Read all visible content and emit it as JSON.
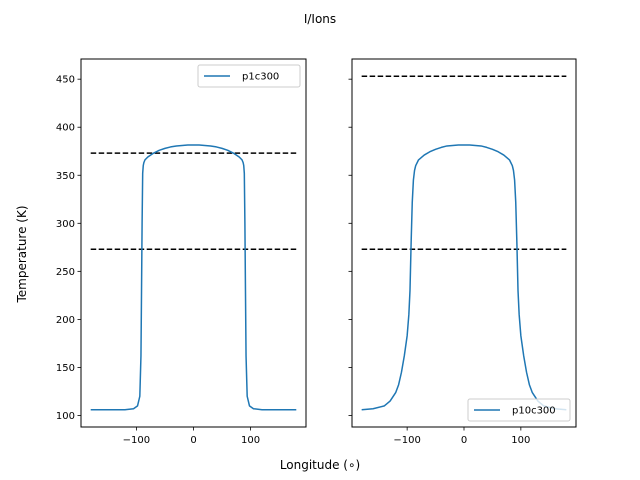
{
  "figure": {
    "suptitle": "I/Ions",
    "xlabel": "Longitude (∘)",
    "ylabel": "Temperature (K)"
  },
  "chart_data": [
    {
      "type": "line",
      "xlim": [
        -197,
        197
      ],
      "ylim": [
        88,
        471
      ],
      "xticks": [
        -100,
        0,
        100
      ],
      "yticks": [
        100,
        150,
        200,
        250,
        300,
        350,
        400,
        450
      ],
      "legend_position": "upper right",
      "series": [
        {
          "name": "p1c300",
          "color": "#1f77b4",
          "x": [
            -180,
            -120,
            -105,
            -98,
            -94,
            -92,
            -91,
            -90,
            -89,
            -88,
            -87,
            -85,
            -80,
            -70,
            -60,
            -50,
            -40,
            -30,
            -20,
            -10,
            0,
            10,
            20,
            30,
            40,
            50,
            60,
            70,
            80,
            85,
            87,
            88,
            89,
            90,
            91,
            92,
            94,
            98,
            105,
            120,
            180
          ],
          "y": [
            106,
            106,
            107,
            110,
            120,
            162,
            230,
            300,
            352,
            360,
            363,
            366,
            369,
            373,
            376,
            378,
            379.5,
            380.5,
            381,
            381.5,
            381.5,
            381.5,
            381,
            380.5,
            379.5,
            378,
            376,
            373,
            369,
            366,
            363,
            360,
            352,
            300,
            230,
            162,
            120,
            110,
            107,
            106,
            106
          ]
        }
      ],
      "reference_lines": [
        {
          "y": 373,
          "style": "dashed",
          "color": "#000000"
        },
        {
          "y": 273,
          "style": "dashed",
          "color": "#000000"
        }
      ]
    },
    {
      "type": "line",
      "xlim": [
        -197,
        197
      ],
      "ylim": [
        88,
        471
      ],
      "xticks": [
        -100,
        0,
        100
      ],
      "yticks": [
        100,
        150,
        200,
        250,
        300,
        350,
        400,
        450
      ],
      "legend_position": "lower right",
      "series": [
        {
          "name": "p10c300",
          "color": "#1f77b4",
          "x": [
            -180,
            -160,
            -140,
            -130,
            -120,
            -115,
            -110,
            -105,
            -100,
            -97,
            -95,
            -93,
            -91,
            -89,
            -87,
            -85,
            -80,
            -70,
            -60,
            -50,
            -40,
            -30,
            -20,
            -10,
            0,
            10,
            20,
            30,
            40,
            50,
            60,
            70,
            80,
            85,
            87,
            89,
            91,
            93,
            95,
            97,
            100,
            105,
            110,
            115,
            120,
            130,
            140,
            160,
            180
          ],
          "y": [
            106,
            107,
            110,
            115,
            124,
            132,
            145,
            162,
            183,
            205,
            230,
            280,
            322,
            345,
            355,
            360,
            366,
            371,
            374.5,
            377,
            379,
            380.5,
            381,
            381.5,
            381.5,
            381.5,
            381,
            380.5,
            379,
            377,
            374.5,
            371,
            366,
            360,
            355,
            345,
            322,
            280,
            230,
            205,
            183,
            162,
            145,
            132,
            124,
            115,
            110,
            107,
            106
          ]
        }
      ],
      "reference_lines": [
        {
          "y": 453,
          "style": "dashed",
          "color": "#000000"
        },
        {
          "y": 273,
          "style": "dashed",
          "color": "#000000"
        }
      ]
    }
  ]
}
